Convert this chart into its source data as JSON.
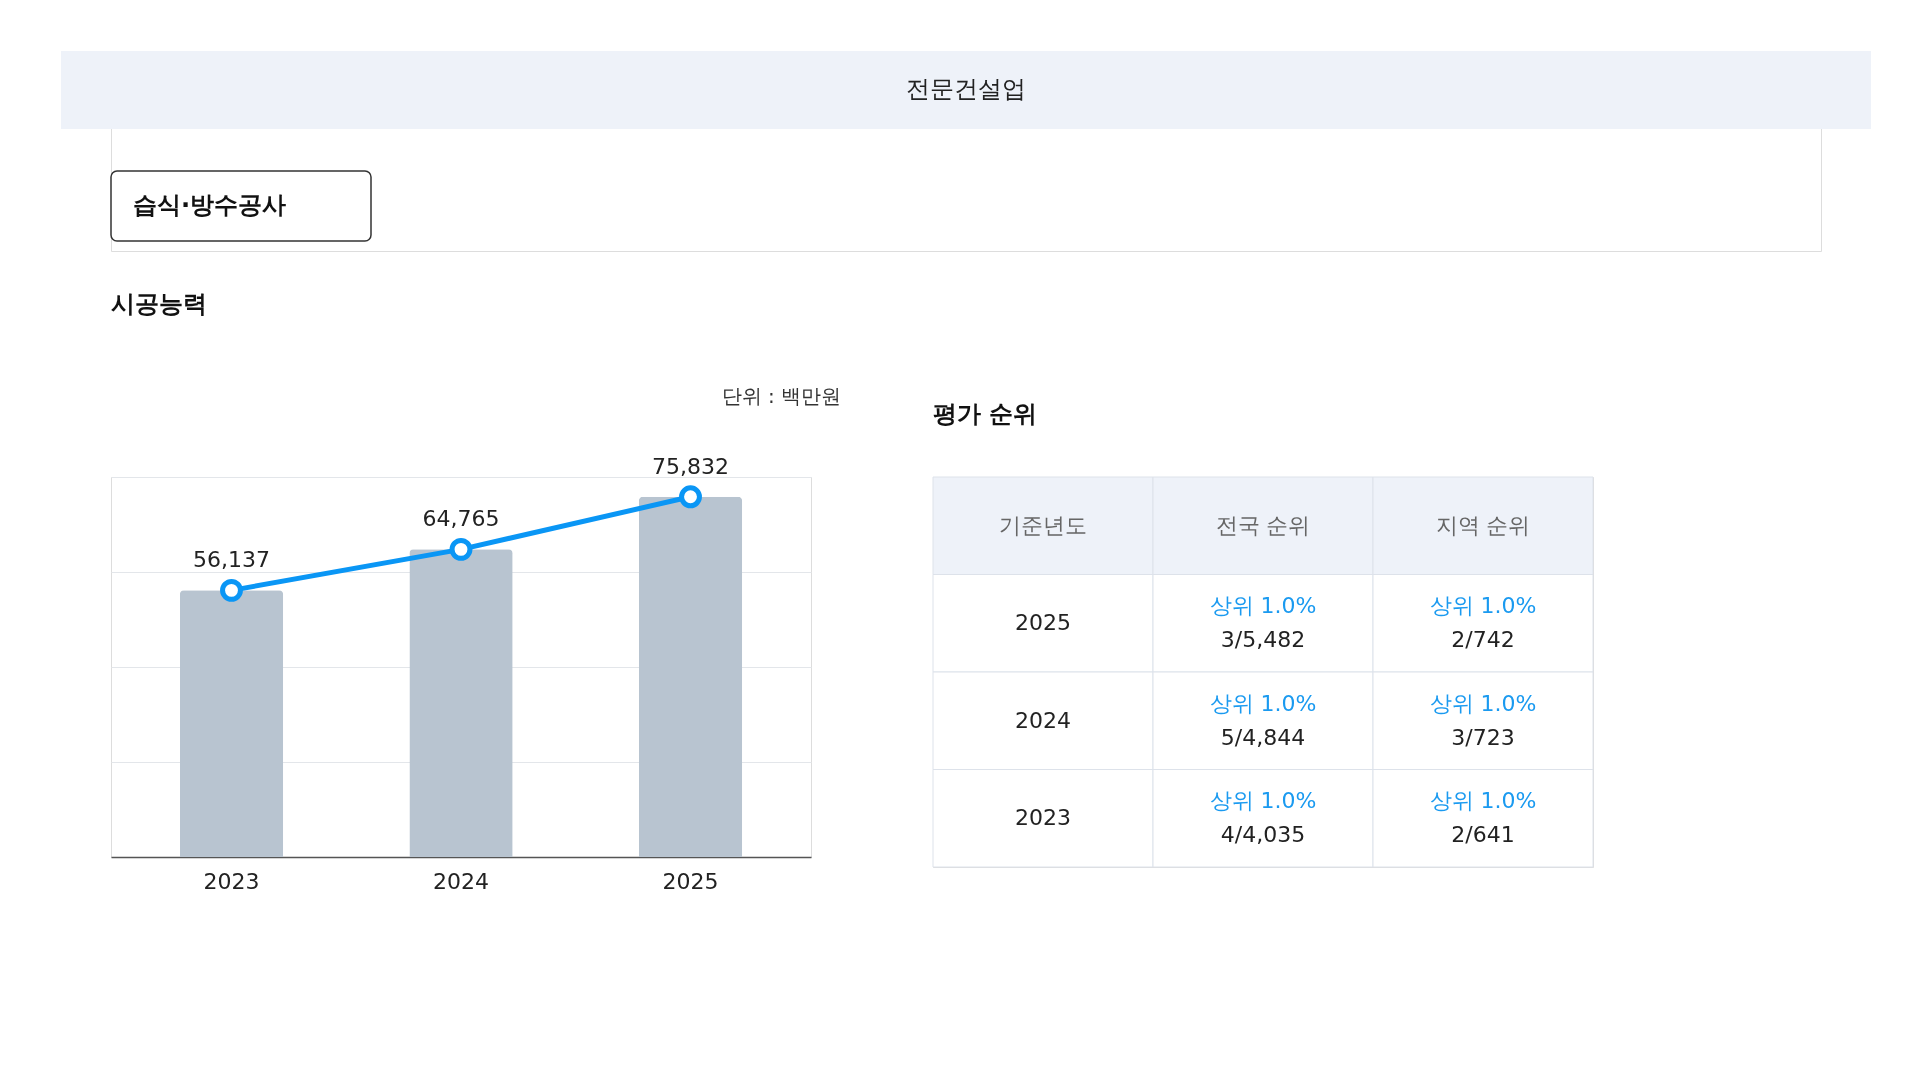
{
  "chart_data": [
    {
      "type": "bar",
      "title": "시공능력",
      "annotations": [
        "전문건설업",
        "습식·방수공사",
        "단위 : 백만원"
      ],
      "categories": [
        "2023",
        "2024",
        "2025"
      ],
      "series": [
        {
          "type": "bar",
          "color": "#b8c4d0",
          "values": [
            56137,
            64765,
            75832
          ]
        },
        {
          "type": "line",
          "color": "#0a96f5",
          "values": [
            56137,
            64765,
            75832
          ],
          "value_labels": [
            "56,137",
            "64,765",
            "75,832"
          ],
          "marker": "circle",
          "line_style": "solid"
        }
      ],
      "grid": "y",
      "tick_labels": "x"
    },
    {
      "type": "other",
      "title": "평가 순위",
      "categories": [
        "기준년도",
        "전국 순위",
        "지역 순위"
      ],
      "y_categories": [
        "2025",
        "2024",
        "2023"
      ],
      "cell_labels": [
        [
          "상위 1.0%\n3/5,482",
          "상위 1.0%\n2/742"
        ],
        [
          "상위 1.0%\n5/4,844",
          "상위 1.0%\n3/723"
        ],
        [
          "상위 1.0%\n4/4,035",
          "상위 1.0%\n2/641"
        ]
      ]
    }
  ]
}
